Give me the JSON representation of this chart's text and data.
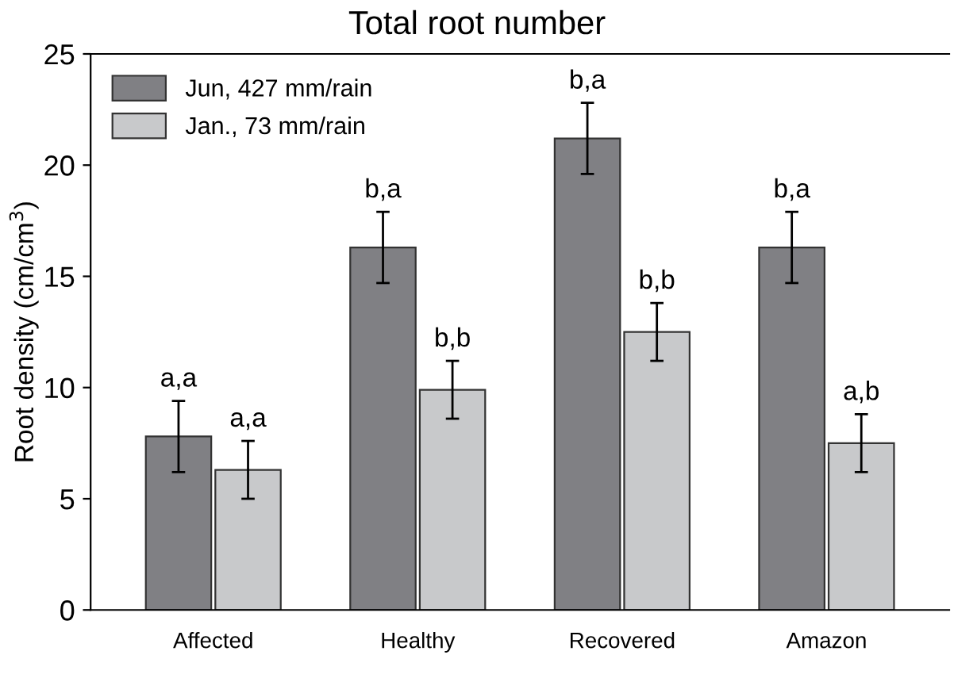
{
  "chart_data": {
    "type": "bar",
    "title": "Total root number",
    "ylabel": "Root density (cm/cm$^{3}$)",
    "categories": [
      "Affected",
      "Healthy",
      "Recovered",
      "Amazon"
    ],
    "series": [
      {
        "name": "Jun, 427 mm/rain",
        "color": "#808084",
        "values": [
          7.8,
          16.3,
          21.2,
          16.3
        ],
        "errors": [
          1.6,
          1.6,
          1.6,
          1.6
        ],
        "value_labels": [
          "a,a",
          "b,a",
          "b,a",
          "b,a"
        ]
      },
      {
        "name": "Jan., 73 mm/rain",
        "color": "#c8c9cb",
        "values": [
          6.3,
          9.9,
          12.5,
          7.5
        ],
        "errors": [
          1.3,
          1.3,
          1.3,
          1.3
        ],
        "value_labels": [
          "a,a",
          "b,b",
          "b,b",
          "a,b"
        ]
      }
    ],
    "ylim": [
      0,
      25
    ],
    "yticks": [
      0,
      5,
      10,
      15,
      20,
      25
    ],
    "grid": false,
    "legend": "top left"
  }
}
